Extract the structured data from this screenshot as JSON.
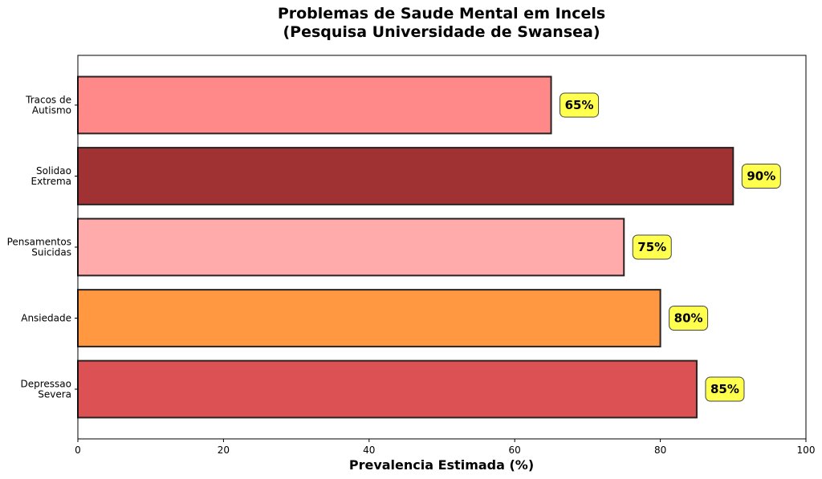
{
  "chart_data": {
    "type": "bar",
    "orientation": "horizontal",
    "title": [
      "Problemas de Saude Mental em Incels",
      "(Pesquisa Universidade de Swansea)"
    ],
    "xlabel": "Prevalencia Estimada (%)",
    "ylabel": "",
    "xlim": [
      0,
      100
    ],
    "xticks": [
      0,
      20,
      40,
      60,
      80,
      100
    ],
    "grid": false,
    "categories": [
      [
        "Depressao",
        "Severa"
      ],
      [
        "Ansiedade"
      ],
      [
        "Pensamentos",
        "Suicidas"
      ],
      [
        "Solidao",
        "Extrema"
      ],
      [
        "Tracos de",
        "Autismo"
      ]
    ],
    "values": [
      85,
      80,
      75,
      90,
      65
    ],
    "data_labels": [
      "85%",
      "80%",
      "75%",
      "90%",
      "65%"
    ],
    "colors": [
      "#dc5154",
      "#ff9841",
      "#ffabab",
      "#a03234",
      "#ff8888"
    ],
    "edge_color": "#2b2222",
    "label_box_color": "#ffff4d"
  }
}
